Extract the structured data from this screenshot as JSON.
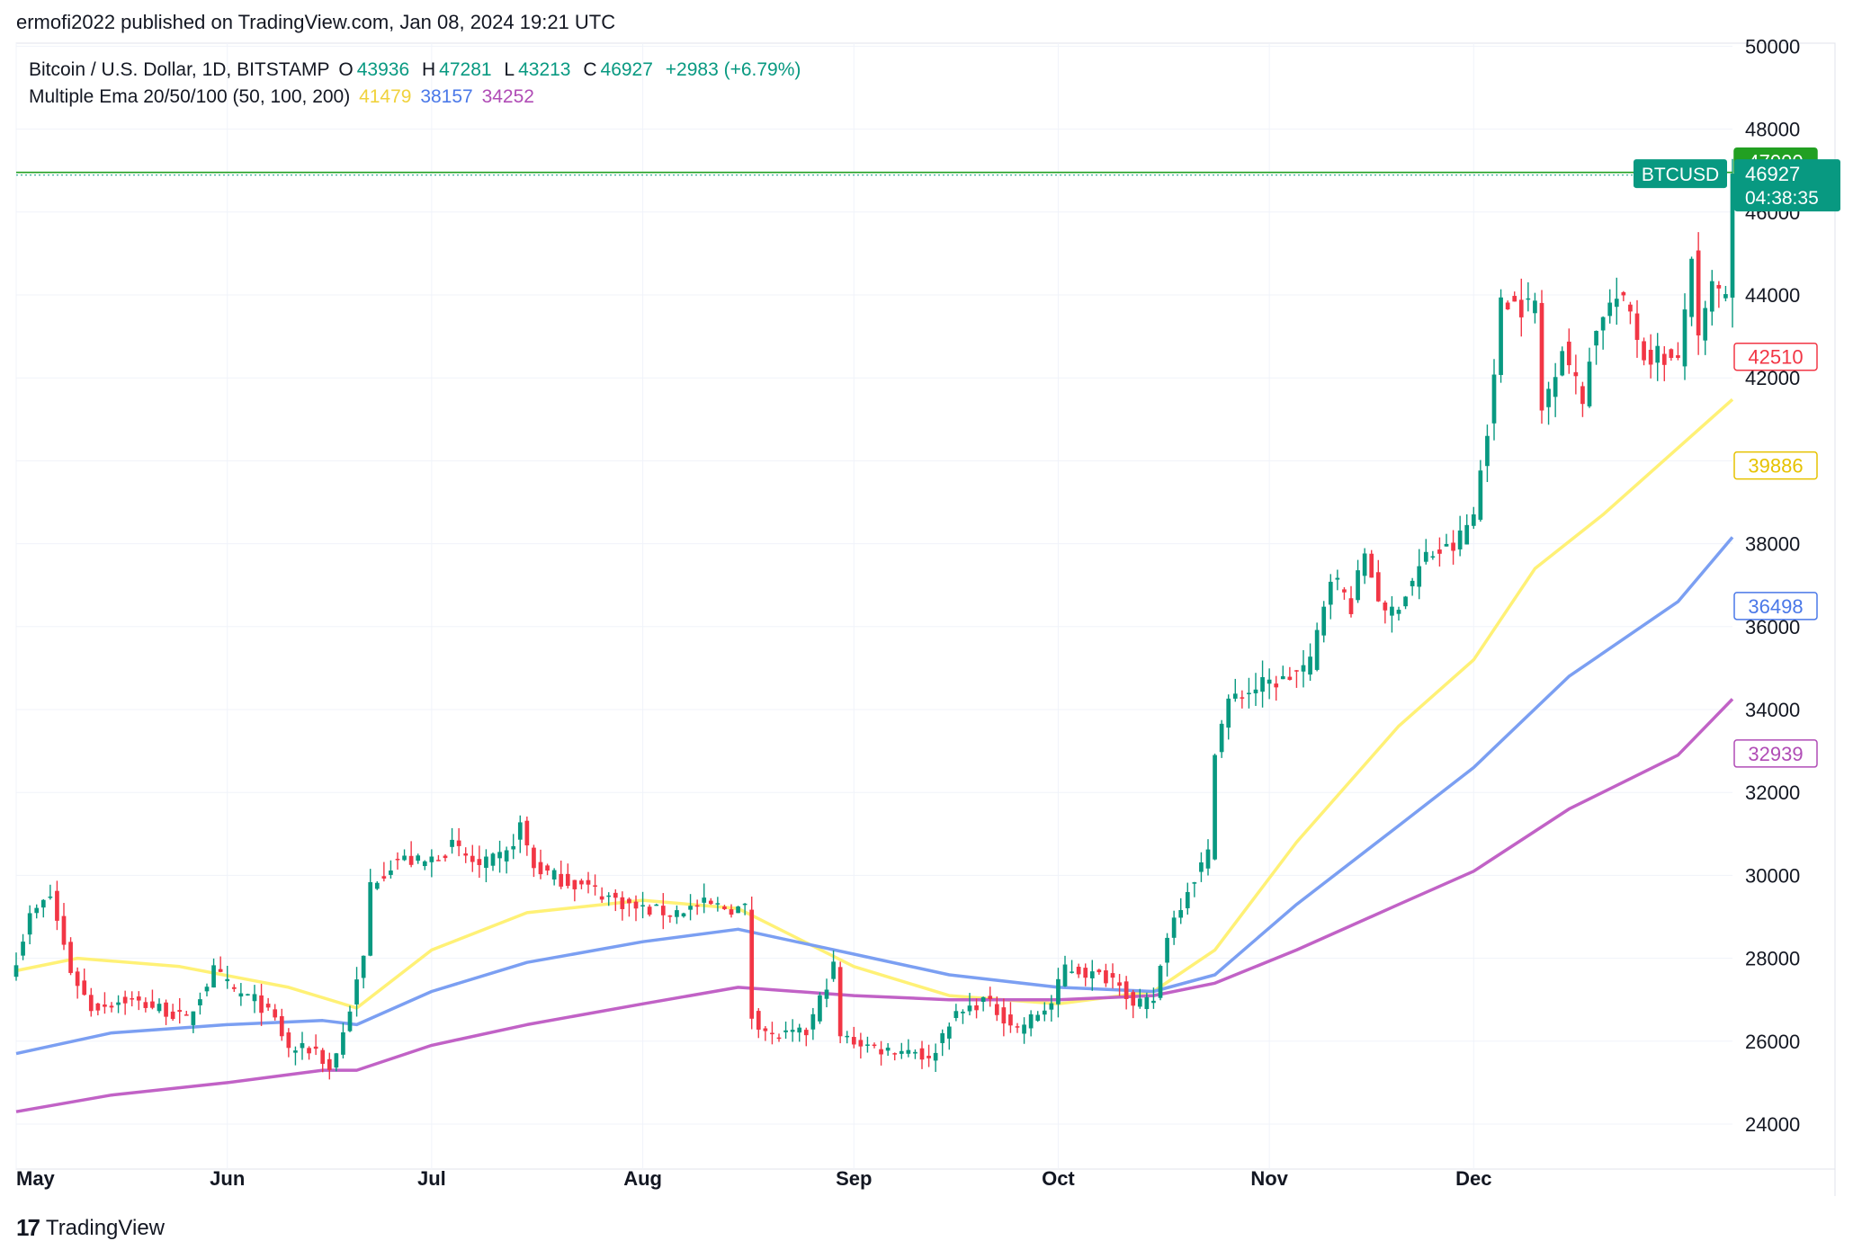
{
  "publisher_line": "ermofi2022 published on TradingView.com, Jan 08, 2024 19:21 UTC",
  "legend": {
    "symbol": "Bitcoin / U.S. Dollar, 1D, BITSTAMP",
    "o_label": "O",
    "o_value": "43936",
    "h_label": "H",
    "h_value": "47281",
    "l_label": "L",
    "l_value": "43213",
    "c_label": "C",
    "c_value": "46927",
    "change": "+2983 (+6.79%)",
    "ema_label": "Multiple Ema 20/50/100 (50, 100, 200)",
    "ema1_value": "41479",
    "ema2_value": "38157",
    "ema3_value": "34252"
  },
  "footer": {
    "logo_mark": "17",
    "logo_text": "TradingView"
  },
  "colors": {
    "up": "#089981",
    "down": "#f23645",
    "ema1": "#fff176",
    "ema2": "#7b9ff2",
    "ema3": "#c162c6",
    "level": "#22a022",
    "price_tag": "#089981"
  },
  "chart_data": {
    "type": "candlestick",
    "y_ticks": [
      24000,
      26000,
      28000,
      30000,
      32000,
      34000,
      36000,
      38000,
      40000,
      42000,
      44000,
      46000,
      48000,
      50000
    ],
    "y_tick_labels": [
      "24000",
      "26000",
      "28000",
      "30000",
      "32000",
      "34000",
      "36000",
      "38000",
      "",
      "42000",
      "44000",
      "46000",
      "48000",
      "50000"
    ],
    "ylim": [
      23500,
      50000
    ],
    "x_range": [
      "2023-05-01",
      "2024-01-08"
    ],
    "x_ticks": [
      {
        "label": "May",
        "date": "2023-05-01"
      },
      {
        "label": "Jun",
        "date": "2023-06-01"
      },
      {
        "label": "Jul",
        "date": "2023-07-01"
      },
      {
        "label": "Aug",
        "date": "2023-08-01"
      },
      {
        "label": "Sep",
        "date": "2023-09-01"
      },
      {
        "label": "Oct",
        "date": "2023-10-01"
      },
      {
        "label": "Nov",
        "date": "2023-11-01"
      },
      {
        "label": "Dec",
        "date": "2023-12-01"
      }
    ],
    "horizontal_level": {
      "value": 47000,
      "label": "47000"
    },
    "current_price": {
      "symbol": "BTCUSD",
      "value": 46927,
      "label": "46927",
      "countdown": "04:38:35"
    },
    "right_labels": [
      {
        "value": 42510,
        "label": "42510",
        "color": "#f23645"
      },
      {
        "value": 39886,
        "label": "39886",
        "color": "#e6c200"
      },
      {
        "value": 36498,
        "label": "36498",
        "color": "#4a78e8"
      },
      {
        "value": 32939,
        "label": "32939",
        "color": "#b04cb6"
      }
    ],
    "close_anchors": [
      [
        "2023-05-01",
        28000
      ],
      [
        "2023-05-03",
        29000
      ],
      [
        "2023-05-06",
        29500
      ],
      [
        "2023-05-09",
        27700
      ],
      [
        "2023-05-12",
        26800
      ],
      [
        "2023-05-17",
        27000
      ],
      [
        "2023-05-22",
        26800
      ],
      [
        "2023-05-26",
        26500
      ],
      [
        "2023-05-30",
        27700
      ],
      [
        "2023-06-02",
        27200
      ],
      [
        "2023-06-05",
        27000
      ],
      [
        "2023-06-08",
        26500
      ],
      [
        "2023-06-10",
        25800
      ],
      [
        "2023-06-14",
        25800
      ],
      [
        "2023-06-16",
        25300
      ],
      [
        "2023-06-18",
        26200
      ],
      [
        "2023-06-21",
        28000
      ],
      [
        "2023-06-22",
        29800
      ],
      [
        "2023-06-26",
        30400
      ],
      [
        "2023-06-30",
        30300
      ],
      [
        "2023-07-04",
        30700
      ],
      [
        "2023-07-08",
        30200
      ],
      [
        "2023-07-12",
        30500
      ],
      [
        "2023-07-14",
        31200
      ],
      [
        "2023-07-16",
        30200
      ],
      [
        "2023-07-20",
        29900
      ],
      [
        "2023-07-24",
        29700
      ],
      [
        "2023-07-31",
        29200
      ],
      [
        "2023-08-05",
        29100
      ],
      [
        "2023-08-10",
        29300
      ],
      [
        "2023-08-14",
        29200
      ],
      [
        "2023-08-16",
        29200
      ],
      [
        "2023-08-17",
        26600
      ],
      [
        "2023-08-20",
        26100
      ],
      [
        "2023-08-25",
        26200
      ],
      [
        "2023-08-29",
        27800
      ],
      [
        "2023-08-30",
        26100
      ],
      [
        "2023-09-05",
        25800
      ],
      [
        "2023-09-10",
        25800
      ],
      [
        "2023-09-12",
        25500
      ],
      [
        "2023-09-15",
        26500
      ],
      [
        "2023-09-20",
        27000
      ],
      [
        "2023-09-25",
        26300
      ],
      [
        "2023-09-30",
        26900
      ],
      [
        "2023-10-02",
        27800
      ],
      [
        "2023-10-06",
        27600
      ],
      [
        "2023-10-10",
        27500
      ],
      [
        "2023-10-12",
        26800
      ],
      [
        "2023-10-15",
        27000
      ],
      [
        "2023-10-17",
        28600
      ],
      [
        "2023-10-20",
        29700
      ],
      [
        "2023-10-23",
        30500
      ],
      [
        "2023-10-24",
        33100
      ],
      [
        "2023-10-26",
        34200
      ],
      [
        "2023-10-31",
        34600
      ],
      [
        "2023-11-03",
        34700
      ],
      [
        "2023-11-07",
        35100
      ],
      [
        "2023-11-10",
        37300
      ],
      [
        "2023-11-13",
        36500
      ],
      [
        "2023-11-15",
        37800
      ],
      [
        "2023-11-18",
        36200
      ],
      [
        "2023-11-21",
        36800
      ],
      [
        "2023-11-24",
        37700
      ],
      [
        "2023-11-28",
        37900
      ],
      [
        "2023-12-01",
        38700
      ],
      [
        "2023-12-04",
        41900
      ],
      [
        "2023-12-05",
        44000
      ],
      [
        "2023-12-08",
        43700
      ],
      [
        "2023-12-10",
        43800
      ],
      [
        "2023-12-11",
        41200
      ],
      [
        "2023-12-14",
        42800
      ],
      [
        "2023-12-17",
        41400
      ],
      [
        "2023-12-18",
        42600
      ],
      [
        "2023-12-20",
        43600
      ],
      [
        "2023-12-22",
        43900
      ],
      [
        "2023-12-24",
        43600
      ],
      [
        "2023-12-26",
        42500
      ],
      [
        "2023-12-28",
        42600
      ],
      [
        "2023-12-31",
        42300
      ],
      [
        "2024-01-02",
        45000
      ],
      [
        "2024-01-03",
        42800
      ],
      [
        "2024-01-05",
        44200
      ],
      [
        "2024-01-07",
        43900
      ],
      [
        "2024-01-08",
        46927
      ]
    ],
    "ema_series": [
      {
        "label": "41479",
        "values": [
          [
            "2023-05-01",
            27700
          ],
          [
            "2023-05-10",
            28000
          ],
          [
            "2023-05-25",
            27800
          ],
          [
            "2023-06-10",
            27300
          ],
          [
            "2023-06-20",
            26800
          ],
          [
            "2023-07-01",
            28200
          ],
          [
            "2023-07-15",
            29100
          ],
          [
            "2023-08-01",
            29400
          ],
          [
            "2023-08-15",
            29200
          ],
          [
            "2023-09-01",
            27800
          ],
          [
            "2023-09-15",
            27100
          ],
          [
            "2023-10-01",
            26900
          ],
          [
            "2023-10-15",
            27200
          ],
          [
            "2023-10-24",
            28200
          ],
          [
            "2023-11-05",
            30800
          ],
          [
            "2023-11-20",
            33600
          ],
          [
            "2023-12-01",
            35200
          ],
          [
            "2023-12-10",
            37400
          ],
          [
            "2023-12-20",
            38700
          ],
          [
            "2024-01-08",
            41479
          ]
        ]
      },
      {
        "label": "38157",
        "values": [
          [
            "2023-05-01",
            25700
          ],
          [
            "2023-05-15",
            26200
          ],
          [
            "2023-06-01",
            26400
          ],
          [
            "2023-06-15",
            26500
          ],
          [
            "2023-06-20",
            26400
          ],
          [
            "2023-07-01",
            27200
          ],
          [
            "2023-07-15",
            27900
          ],
          [
            "2023-08-01",
            28400
          ],
          [
            "2023-08-15",
            28700
          ],
          [
            "2023-09-01",
            28100
          ],
          [
            "2023-09-15",
            27600
          ],
          [
            "2023-10-01",
            27300
          ],
          [
            "2023-10-15",
            27200
          ],
          [
            "2023-10-24",
            27600
          ],
          [
            "2023-11-05",
            29300
          ],
          [
            "2023-11-20",
            31200
          ],
          [
            "2023-12-01",
            32600
          ],
          [
            "2023-12-15",
            34800
          ],
          [
            "2023-12-31",
            36600
          ],
          [
            "2024-01-08",
            38157
          ]
        ]
      },
      {
        "label": "34252",
        "values": [
          [
            "2023-05-01",
            24300
          ],
          [
            "2023-05-15",
            24700
          ],
          [
            "2023-06-01",
            25000
          ],
          [
            "2023-06-15",
            25300
          ],
          [
            "2023-06-20",
            25300
          ],
          [
            "2023-07-01",
            25900
          ],
          [
            "2023-07-15",
            26400
          ],
          [
            "2023-08-01",
            26900
          ],
          [
            "2023-08-15",
            27300
          ],
          [
            "2023-09-01",
            27100
          ],
          [
            "2023-09-15",
            27000
          ],
          [
            "2023-10-01",
            27000
          ],
          [
            "2023-10-15",
            27100
          ],
          [
            "2023-10-24",
            27400
          ],
          [
            "2023-11-05",
            28200
          ],
          [
            "2023-11-20",
            29300
          ],
          [
            "2023-12-01",
            30100
          ],
          [
            "2023-12-15",
            31600
          ],
          [
            "2023-12-31",
            32900
          ],
          [
            "2024-01-08",
            34252
          ]
        ]
      }
    ]
  }
}
